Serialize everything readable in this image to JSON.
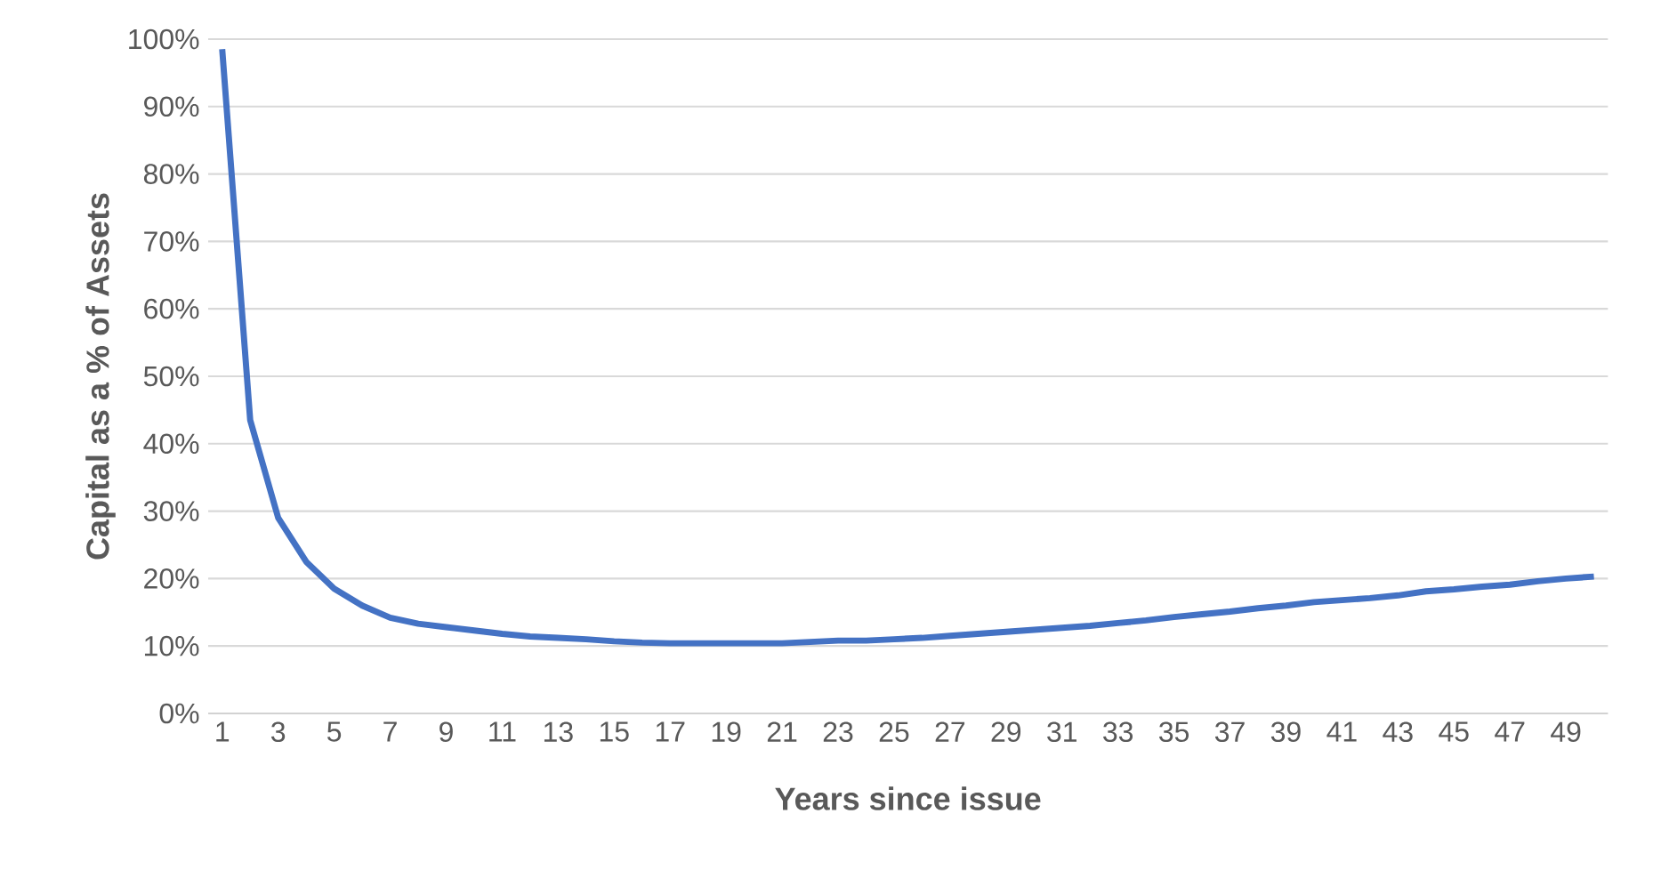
{
  "chart_data": {
    "type": "line",
    "xlabel": "Years since issue",
    "ylabel": "Capital as a % of Assets",
    "categories": [
      "1",
      null,
      "3",
      null,
      "5",
      null,
      "7",
      null,
      "9",
      null,
      "11",
      null,
      "13",
      null,
      "15",
      null,
      "17",
      null,
      "19",
      null,
      "21",
      null,
      "23",
      null,
      "25",
      null,
      "27",
      null,
      "29",
      null,
      "31",
      null,
      "33",
      null,
      "35",
      null,
      "37",
      null,
      "39",
      null,
      "41",
      null,
      "43",
      null,
      "45",
      null,
      "47",
      null,
      "49",
      null
    ],
    "series": [
      {
        "color": "#4472c4",
        "values": [
          98.5,
          43.5,
          29,
          22.5,
          18.5,
          16,
          14.2,
          13.3,
          12.8,
          12.3,
          11.8,
          11.4,
          11.2,
          11,
          10.7,
          10.5,
          10.4,
          10.4,
          10.4,
          10.4,
          10.4,
          10.6,
          10.8,
          10.8,
          11,
          11.2,
          11.5,
          11.8,
          12.1,
          12.4,
          12.7,
          13,
          13.4,
          13.8,
          14.3,
          14.7,
          15.1,
          15.6,
          16,
          16.5,
          16.8,
          17.1,
          17.5,
          18.1,
          18.4,
          18.8,
          19.1,
          19.6,
          20,
          20.3
        ]
      }
    ],
    "ylim": [
      0,
      100
    ],
    "yticks": [
      {
        "value": 0,
        "label": "0%"
      },
      {
        "value": 10,
        "label": "10%"
      },
      {
        "value": 20,
        "label": "20%"
      },
      {
        "value": 30,
        "label": "30%"
      },
      {
        "value": 40,
        "label": "40%"
      },
      {
        "value": 50,
        "label": "50%"
      },
      {
        "value": 60,
        "label": "60%"
      },
      {
        "value": 70,
        "label": "70%"
      },
      {
        "value": 80,
        "label": "80%"
      },
      {
        "value": 90,
        "label": "90%"
      },
      {
        "value": 100,
        "label": "100%"
      }
    ],
    "grid": "y",
    "line_style": "solid"
  }
}
